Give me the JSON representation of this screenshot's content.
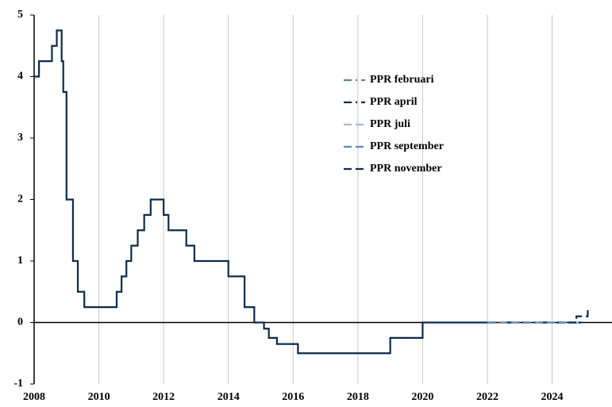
{
  "chart_data": {
    "type": "line",
    "drawstyle": "steps-post",
    "xlim": [
      2008,
      2025.85
    ],
    "xticks": [
      2008,
      2010,
      2012,
      2014,
      2016,
      2018,
      2020,
      2022,
      2024
    ],
    "ylim": [
      -1,
      5
    ],
    "yticks": [
      -1,
      0,
      1,
      2,
      3,
      4,
      5
    ],
    "grid": "x",
    "series": [
      {
        "color": "#0d2b4a",
        "dash": "solid",
        "x": [
          2008.0,
          2008.15,
          2008.55,
          2008.7,
          2008.85,
          2008.9,
          2009.0,
          2009.2,
          2009.35,
          2009.55,
          2010.55,
          2010.7,
          2010.85,
          2011.0,
          2011.2,
          2011.4,
          2011.6,
          2012.0,
          2012.15,
          2012.7,
          2012.95,
          2014.0,
          2014.5,
          2014.8,
          2015.1,
          2015.25,
          2015.5,
          2016.15,
          2019.0,
          2020.0,
          2022.0
        ],
        "values": [
          4.0,
          4.25,
          4.5,
          4.75,
          4.25,
          3.75,
          2.0,
          1.0,
          0.5,
          0.25,
          0.5,
          0.75,
          1.0,
          1.25,
          1.5,
          1.75,
          2.0,
          1.75,
          1.5,
          1.25,
          1.0,
          0.75,
          0.25,
          0,
          -0.1,
          -0.25,
          -0.35,
          -0.5,
          -0.25,
          0,
          0
        ]
      },
      {
        "name": "PPR februari",
        "color": "#5b7fa6",
        "dash": "dashdot",
        "x": [
          2022.0,
          2023.0,
          2024.0,
          2024.9
        ],
        "values": [
          0,
          0,
          0,
          0
        ]
      },
      {
        "name": "PPR april",
        "color": "#0d2b4a",
        "dash": "dashdot",
        "x": [
          2022.0,
          2023.0,
          2024.0,
          2024.9
        ],
        "values": [
          0,
          0,
          0,
          0
        ]
      },
      {
        "name": "PPR juli",
        "color": "#a9b9cc",
        "dash": "dashed",
        "x": [
          2022.0,
          2023.0,
          2024.0,
          2024.9
        ],
        "values": [
          0,
          0,
          0,
          0
        ]
      },
      {
        "name": "PPR september",
        "color": "#6688aa",
        "dash": "dashed",
        "x": [
          2022.0,
          2023.0,
          2024.0,
          2024.75
        ],
        "values": [
          0,
          0,
          0,
          0
        ]
      },
      {
        "name": "PPR november",
        "color": "#0d2b4a",
        "dash": "dashed",
        "x": [
          2024.5,
          2024.75,
          2025.1
        ],
        "values": [
          0,
          0.1,
          0.2
        ]
      }
    ]
  }
}
